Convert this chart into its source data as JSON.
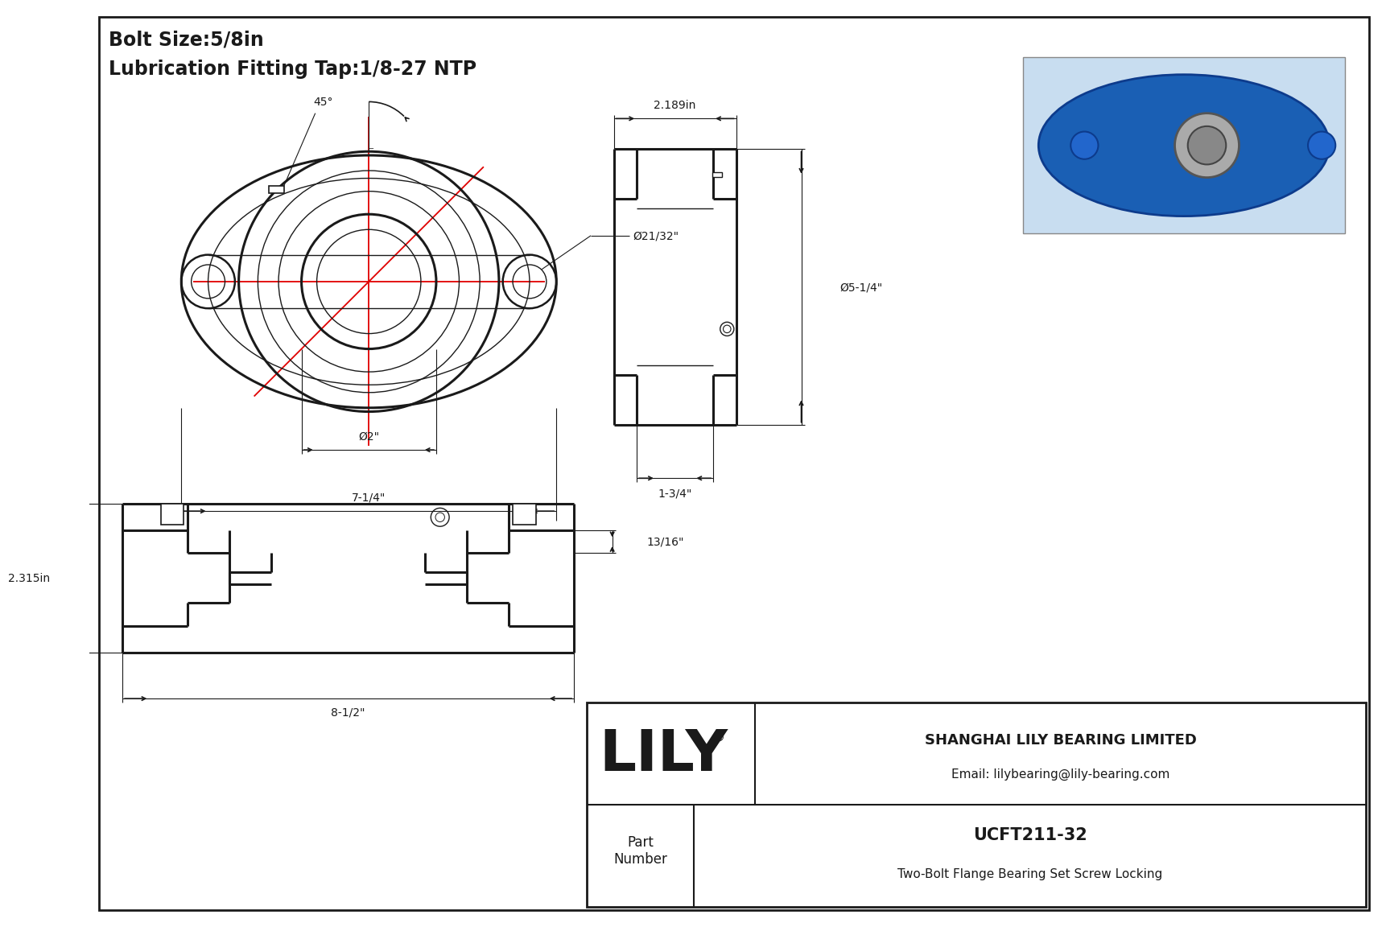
{
  "title_line1": "Bolt Size:5/8in",
  "title_line2": "Lubrication Fitting Tap:1/8-27 NTP",
  "bg_color": "#ffffff",
  "line_color": "#1a1a1a",
  "red_color": "#e00000",
  "company": "SHANGHAI LILY BEARING LIMITED",
  "email": "Email: lilybearing@lily-bearing.com",
  "part_number": "UCFT211-32",
  "part_desc": "Two-Bolt Flange Bearing Set Screw Locking",
  "lily_text": "LILY",
  "dim_7_1_4": "7-1/4\"",
  "dim_2in": "Ø2\"",
  "dim_21_32": "Ø21/32\"",
  "dim_45deg": "45°",
  "dim_2_189": "2.189in",
  "dim_5_1_4": "Ø5-1/4\"",
  "dim_1_3_4": "1-3/4\"",
  "dim_8_1_2": "8-1/2\"",
  "dim_2_315": "2.315in",
  "dim_13_16": "13/16\""
}
